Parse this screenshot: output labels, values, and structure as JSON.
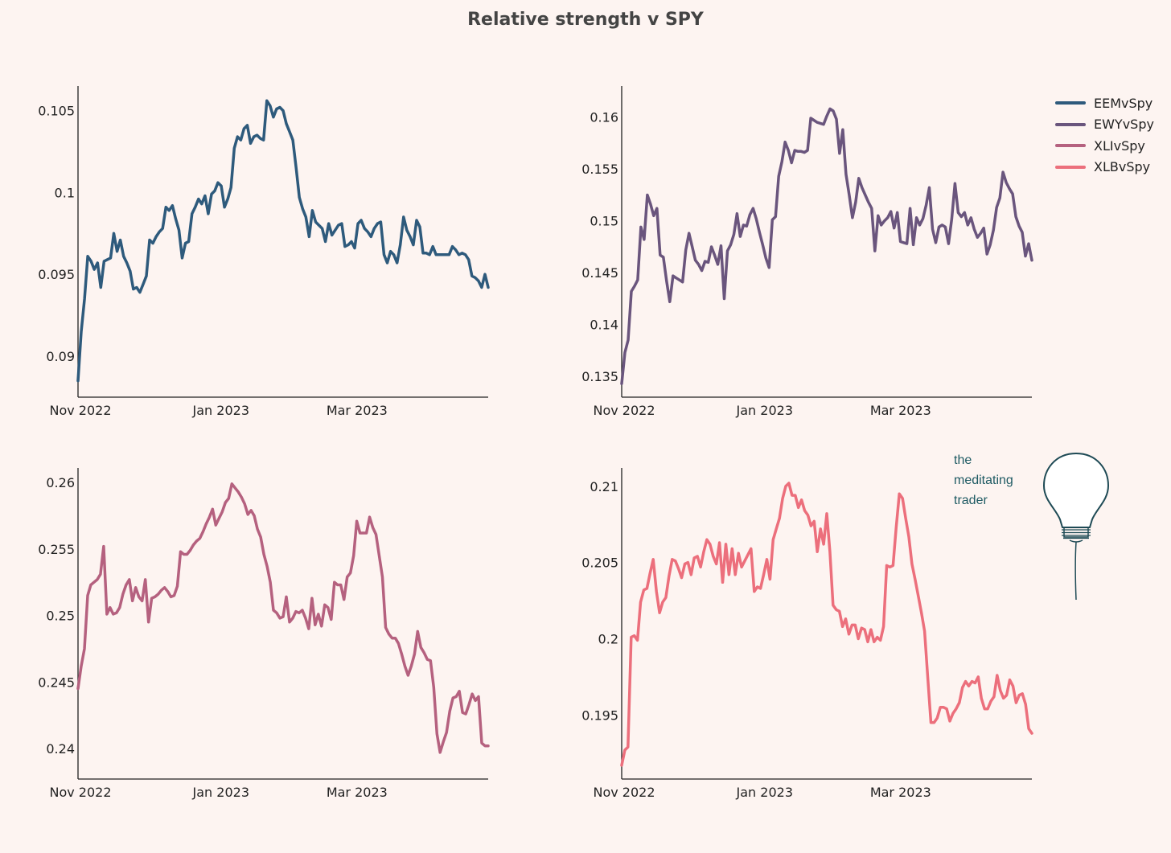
{
  "title": "Relative strength v SPY",
  "x_ticks": [
    "Nov 2022",
    "Jan 2023",
    "Mar 2023"
  ],
  "legend": [
    {
      "name": "EEMvSpy",
      "color": "#2e5a7c"
    },
    {
      "name": "EWYvSpy",
      "color": "#6a557d"
    },
    {
      "name": "XLIvSpy",
      "color": "#b5617f"
    },
    {
      "name": "XLBvSpy",
      "color": "#ec6f7c"
    }
  ],
  "logo": {
    "line1": "the",
    "line2": "meditating",
    "line3": "trader",
    "icon": "lightbulb-icon"
  },
  "chart_data": [
    {
      "type": "line",
      "name": "EEMvSpy",
      "color": "#2e5a7c",
      "ylim": [
        0.0875,
        0.1065
      ],
      "y_ticks": [
        0.09,
        0.095,
        0.1,
        0.105
      ],
      "y_tick_labels": [
        "0.09",
        "0.095",
        "0.1",
        "0.105"
      ],
      "x_start": "2022-11-01",
      "x_end": "2023-04-28",
      "values": [
        0.0885,
        0.0915,
        0.0935,
        0.0961,
        0.0958,
        0.0953,
        0.0957,
        0.0942,
        0.0958,
        0.0959,
        0.096,
        0.0975,
        0.0964,
        0.0971,
        0.0961,
        0.0957,
        0.0952,
        0.0941,
        0.0942,
        0.0939,
        0.0944,
        0.0949,
        0.0971,
        0.0969,
        0.0973,
        0.0976,
        0.0978,
        0.0991,
        0.0989,
        0.0992,
        0.0984,
        0.0977,
        0.096,
        0.0969,
        0.097,
        0.0987,
        0.0991,
        0.0996,
        0.0993,
        0.0998,
        0.0987,
        0.0999,
        0.1001,
        0.1006,
        0.1004,
        0.0991,
        0.0996,
        0.1003,
        0.1027,
        0.1034,
        0.1032,
        0.1039,
        0.1041,
        0.103,
        0.1034,
        0.1035,
        0.1033,
        0.1032,
        0.1056,
        0.1053,
        0.1046,
        0.1051,
        0.1052,
        0.105,
        0.1042,
        0.1037,
        0.1032,
        0.1015,
        0.0997,
        0.099,
        0.0985,
        0.0973,
        0.0989,
        0.0982,
        0.098,
        0.0978,
        0.097,
        0.0981,
        0.0974,
        0.0977,
        0.098,
        0.0981,
        0.0967,
        0.0968,
        0.097,
        0.0966,
        0.0981,
        0.0983,
        0.0978,
        0.0976,
        0.0973,
        0.0978,
        0.0981,
        0.0982,
        0.0962,
        0.0957,
        0.0964,
        0.0962,
        0.0957,
        0.0968,
        0.0985,
        0.0977,
        0.0973,
        0.0968,
        0.0983,
        0.0979,
        0.0963,
        0.0963,
        0.0962,
        0.0967,
        0.0962,
        0.0962,
        0.0962,
        0.0962,
        0.0962,
        0.0967,
        0.0965,
        0.0962,
        0.0963,
        0.0962,
        0.0959,
        0.0949,
        0.0948,
        0.0946,
        0.0942,
        0.095,
        0.0942
      ]
    },
    {
      "type": "line",
      "name": "EWYvSpy",
      "color": "#6a557d",
      "ylim": [
        0.133,
        0.163
      ],
      "y_ticks": [
        0.135,
        0.14,
        0.145,
        0.15,
        0.155,
        0.16
      ],
      "y_tick_labels": [
        "0.135",
        "0.14",
        "0.145",
        "0.15",
        "0.155",
        "0.16"
      ],
      "x_start": "2022-11-01",
      "x_end": "2023-04-28",
      "values": [
        0.1343,
        0.1373,
        0.1385,
        0.1432,
        0.1437,
        0.1443,
        0.1494,
        0.1482,
        0.1525,
        0.1516,
        0.1505,
        0.1512,
        0.1467,
        0.1465,
        0.1442,
        0.1422,
        0.1447,
        0.1445,
        0.1443,
        0.1441,
        0.1472,
        0.1488,
        0.1475,
        0.1462,
        0.1458,
        0.1452,
        0.1461,
        0.146,
        0.1475,
        0.1467,
        0.1458,
        0.1476,
        0.1425,
        0.1471,
        0.1477,
        0.1487,
        0.1507,
        0.1485,
        0.1496,
        0.1495,
        0.1506,
        0.1512,
        0.1502,
        0.1489,
        0.1477,
        0.1464,
        0.1455,
        0.1501,
        0.1504,
        0.1543,
        0.1557,
        0.1576,
        0.1568,
        0.1556,
        0.1568,
        0.1567,
        0.1567,
        0.1566,
        0.1568,
        0.1599,
        0.1597,
        0.1595,
        0.1594,
        0.1593,
        0.1601,
        0.1608,
        0.1606,
        0.1598,
        0.1565,
        0.1588,
        0.1545,
        0.1525,
        0.1503,
        0.1518,
        0.1541,
        0.1532,
        0.1525,
        0.1518,
        0.1512,
        0.1471,
        0.1505,
        0.1496,
        0.15,
        0.1503,
        0.1509,
        0.1493,
        0.1508,
        0.148,
        0.1479,
        0.1478,
        0.1512,
        0.1477,
        0.1503,
        0.1496,
        0.1502,
        0.1515,
        0.1532,
        0.1492,
        0.1479,
        0.1494,
        0.1496,
        0.1494,
        0.1478,
        0.1502,
        0.1536,
        0.1508,
        0.1504,
        0.1508,
        0.1496,
        0.1503,
        0.1492,
        0.1484,
        0.1488,
        0.1493,
        0.1468,
        0.1477,
        0.1491,
        0.1513,
        0.1522,
        0.1547,
        0.1537,
        0.1531,
        0.1526,
        0.1504,
        0.1495,
        0.1489,
        0.1466,
        0.1478,
        0.1462
      ]
    },
    {
      "type": "line",
      "name": "XLIvSpy",
      "color": "#b5617f",
      "ylim": [
        0.2377,
        0.2611
      ],
      "y_ticks": [
        0.24,
        0.245,
        0.25,
        0.255,
        0.26
      ],
      "y_tick_labels": [
        "0.24",
        "0.245",
        "0.25",
        "0.255",
        "0.26"
      ],
      "x_start": "2022-11-01",
      "x_end": "2023-04-28",
      "values": [
        0.2445,
        0.2462,
        0.2475,
        0.2515,
        0.2523,
        0.2525,
        0.2527,
        0.2531,
        0.2552,
        0.2501,
        0.2506,
        0.2501,
        0.2502,
        0.2506,
        0.2516,
        0.2523,
        0.2527,
        0.2511,
        0.2521,
        0.2514,
        0.2511,
        0.2527,
        0.2495,
        0.2513,
        0.2514,
        0.2516,
        0.2519,
        0.2521,
        0.2518,
        0.2514,
        0.2515,
        0.2522,
        0.2548,
        0.2546,
        0.2546,
        0.2549,
        0.2553,
        0.2556,
        0.2558,
        0.2563,
        0.2569,
        0.2574,
        0.258,
        0.2568,
        0.2573,
        0.2578,
        0.2585,
        0.2588,
        0.2599,
        0.2596,
        0.2593,
        0.2589,
        0.2584,
        0.2576,
        0.2579,
        0.2575,
        0.2565,
        0.2559,
        0.2546,
        0.2537,
        0.2525,
        0.2504,
        0.2502,
        0.2498,
        0.2499,
        0.2514,
        0.2495,
        0.2498,
        0.2503,
        0.2502,
        0.2504,
        0.2498,
        0.249,
        0.2513,
        0.2493,
        0.2501,
        0.2492,
        0.2508,
        0.2506,
        0.2497,
        0.2525,
        0.2523,
        0.2523,
        0.2512,
        0.2529,
        0.2532,
        0.2545,
        0.2571,
        0.2562,
        0.2562,
        0.2562,
        0.2574,
        0.2566,
        0.2561,
        0.2545,
        0.2529,
        0.2491,
        0.2486,
        0.2483,
        0.2483,
        0.2479,
        0.2471,
        0.2462,
        0.2455,
        0.2462,
        0.2471,
        0.2488,
        0.2476,
        0.2472,
        0.2467,
        0.2466,
        0.2446,
        0.2411,
        0.2397,
        0.2405,
        0.2412,
        0.2428,
        0.2438,
        0.2439,
        0.2443,
        0.2427,
        0.2426,
        0.2433,
        0.2441,
        0.2436,
        0.2439,
        0.2404,
        0.2402,
        0.2402
      ]
    },
    {
      "type": "line",
      "name": "XLBvSpy",
      "color": "#ec6f7c",
      "ylim": [
        0.1908,
        0.2112
      ],
      "y_ticks": [
        0.195,
        0.2,
        0.205,
        0.21
      ],
      "y_tick_labels": [
        "0.195",
        "0.2",
        "0.205",
        "0.21"
      ],
      "x_start": "2022-11-01",
      "x_end": "2023-04-28",
      "values": [
        0.1917,
        0.1927,
        0.1929,
        0.2001,
        0.2002,
        0.1999,
        0.2024,
        0.2032,
        0.2033,
        0.2043,
        0.2052,
        0.2031,
        0.2017,
        0.2024,
        0.2027,
        0.2041,
        0.2052,
        0.2051,
        0.2046,
        0.204,
        0.2049,
        0.205,
        0.2042,
        0.2053,
        0.2054,
        0.2047,
        0.2057,
        0.2065,
        0.2062,
        0.2054,
        0.2049,
        0.2063,
        0.2037,
        0.2062,
        0.2042,
        0.2059,
        0.2042,
        0.2056,
        0.2047,
        0.2051,
        0.2055,
        0.2059,
        0.2031,
        0.2034,
        0.2033,
        0.2042,
        0.2052,
        0.2039,
        0.2065,
        0.2072,
        0.2079,
        0.2092,
        0.21,
        0.2102,
        0.2094,
        0.2094,
        0.2086,
        0.2091,
        0.2084,
        0.2081,
        0.2074,
        0.2077,
        0.2057,
        0.2072,
        0.2062,
        0.2082,
        0.2057,
        0.2022,
        0.2019,
        0.2018,
        0.2008,
        0.2013,
        0.2003,
        0.2009,
        0.2009,
        0.2,
        0.2007,
        0.2006,
        0.1998,
        0.2006,
        0.1998,
        0.2001,
        0.1999,
        0.2008,
        0.2048,
        0.2047,
        0.2048,
        0.2073,
        0.2095,
        0.2092,
        0.2079,
        0.2067,
        0.2049,
        0.2039,
        0.2028,
        0.2017,
        0.2005,
        0.1975,
        0.1945,
        0.1945,
        0.1948,
        0.1955,
        0.1955,
        0.1954,
        0.1946,
        0.1951,
        0.1954,
        0.1958,
        0.1968,
        0.1972,
        0.1969,
        0.1972,
        0.1971,
        0.1975,
        0.1961,
        0.1954,
        0.1954,
        0.1959,
        0.1962,
        0.1976,
        0.1966,
        0.1961,
        0.1963,
        0.1973,
        0.1969,
        0.1958,
        0.1963,
        0.1964,
        0.1957,
        0.1941,
        0.1938
      ]
    }
  ]
}
